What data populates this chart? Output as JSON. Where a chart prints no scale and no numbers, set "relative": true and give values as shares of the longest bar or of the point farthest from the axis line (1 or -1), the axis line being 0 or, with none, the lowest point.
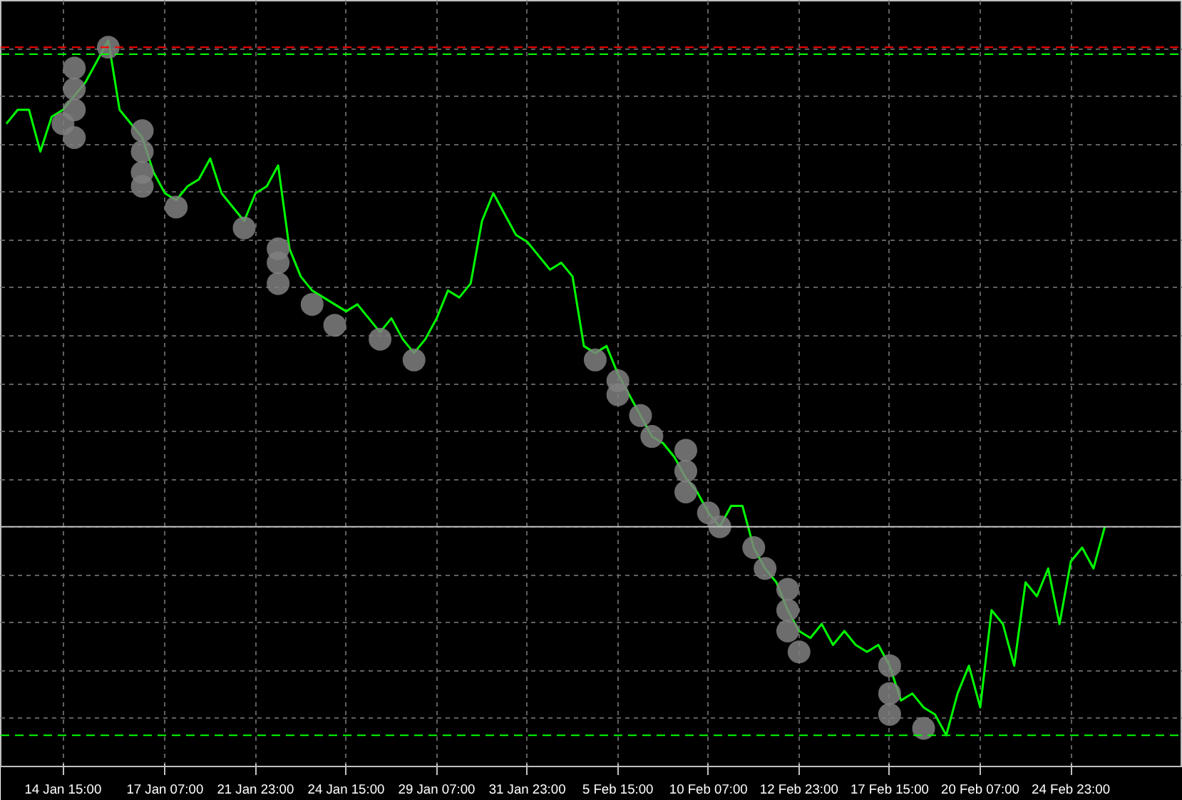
{
  "chart_data": {
    "type": "line",
    "relative": true,
    "grid": true,
    "line_style": "solid",
    "categories": [
      null,
      null,
      null,
      null,
      null,
      "14 Jan 15:00",
      null,
      null,
      null,
      null,
      null,
      null,
      null,
      null,
      "17 Jan 07:00",
      null,
      null,
      null,
      null,
      null,
      null,
      null,
      "21 Jan 23:00",
      null,
      null,
      null,
      null,
      null,
      null,
      null,
      "24 Jan 15:00",
      null,
      null,
      null,
      null,
      null,
      null,
      null,
      "29 Jan 07:00",
      null,
      null,
      null,
      null,
      null,
      null,
      null,
      "31 Jan 23:00",
      null,
      null,
      null,
      null,
      null,
      null,
      null,
      "5 Feb 15:00",
      null,
      null,
      null,
      null,
      null,
      null,
      null,
      "10 Feb 07:00",
      null,
      null,
      null,
      null,
      null,
      null,
      null,
      "12 Feb 23:00",
      null,
      null,
      null,
      null,
      null,
      null,
      null,
      "17 Feb 15:00",
      null,
      null,
      null,
      null,
      null,
      null,
      null,
      "20 Feb 07:00",
      null,
      null,
      null,
      null,
      null,
      null,
      null,
      "24 Feb 23:00",
      null,
      null,
      null
    ],
    "series": [
      {
        "color": "#00ff00",
        "values": [
          0.88,
          0.9,
          0.9,
          0.84,
          0.89,
          0.9,
          0.92,
          0.94,
          0.97,
          1,
          0.9,
          0.88,
          0.86,
          0.81,
          0.78,
          0.77,
          0.79,
          0.8,
          0.83,
          0.78,
          0.76,
          0.74,
          0.78,
          0.79,
          0.82,
          0.7,
          0.66,
          0.64,
          0.63,
          0.62,
          0.61,
          0.62,
          0.6,
          0.58,
          0.6,
          0.57,
          0.55,
          0.57,
          0.6,
          0.64,
          0.63,
          0.65,
          0.74,
          0.78,
          0.75,
          0.72,
          0.71,
          0.69,
          0.67,
          0.68,
          0.66,
          0.56,
          0.55,
          0.56,
          0.52,
          0.49,
          0.46,
          0.43,
          0.42,
          0.4,
          0.37,
          0.35,
          0.32,
          0.3,
          0.33,
          0.33,
          0.27,
          0.24,
          0.22,
          0.18,
          0.15,
          0.14,
          0.16,
          0.13,
          0.15,
          0.13,
          0.12,
          0.13,
          0.1,
          0.05,
          0.06,
          0.04,
          0.03,
          0,
          0.06,
          0.1,
          0.04,
          0.18,
          0.16,
          0.1,
          0.22,
          0.2,
          0.24,
          0.16,
          0.25,
          0.27,
          0.24,
          0.3
        ]
      },
      {
        "type": "scatter",
        "color": "#808080",
        "marker": "circle",
        "values": [
          null,
          null,
          null,
          null,
          null,
          0.88,
          0.96,
          null,
          null,
          0.99,
          null,
          null,
          0.87,
          null,
          null,
          0.76,
          null,
          null,
          null,
          null,
          null,
          0.73,
          null,
          null,
          0.7,
          null,
          null,
          0.62,
          null,
          0.59,
          null,
          null,
          null,
          0.57,
          null,
          null,
          0.54,
          null,
          null,
          null,
          null,
          null,
          null,
          null,
          null,
          null,
          null,
          null,
          null,
          null,
          null,
          null,
          0.54,
          null,
          0.51,
          null,
          0.46,
          0.43,
          null,
          null,
          0.41,
          null,
          0.32,
          0.3,
          null,
          null,
          0.27,
          0.24,
          null,
          0.21,
          0.12,
          null,
          null,
          null,
          null,
          null,
          null,
          null,
          0.1,
          null,
          null,
          0.01,
          null,
          null,
          null,
          null,
          null,
          null,
          null,
          null,
          null,
          null,
          null,
          null,
          null,
          null,
          null,
          null
        ]
      },
      {
        "type": "scatter",
        "color": "#808080",
        "marker": "circle",
        "values": [
          null,
          null,
          null,
          null,
          null,
          null,
          0.93,
          null,
          null,
          null,
          null,
          null,
          0.84,
          null,
          null,
          null,
          null,
          null,
          null,
          null,
          null,
          null,
          null,
          null,
          0.68,
          null,
          null,
          null,
          null,
          null,
          null,
          null,
          null,
          null,
          null,
          null,
          null,
          null,
          null,
          null,
          null,
          null,
          null,
          null,
          null,
          null,
          null,
          null,
          null,
          null,
          null,
          null,
          null,
          null,
          0.49,
          null,
          null,
          null,
          null,
          null,
          0.38,
          null,
          null,
          null,
          null,
          null,
          null,
          null,
          null,
          0.18,
          null,
          null,
          null,
          null,
          null,
          null,
          null,
          null,
          0.06,
          null,
          null,
          null,
          null,
          null,
          null,
          null,
          null,
          null,
          null,
          null,
          null,
          null,
          null,
          null,
          null,
          null,
          null,
          null
        ]
      },
      {
        "type": "scatter",
        "color": "#808080",
        "marker": "circle",
        "values": [
          null,
          null,
          null,
          null,
          null,
          null,
          0.9,
          null,
          null,
          null,
          null,
          null,
          0.81,
          null,
          null,
          null,
          null,
          null,
          null,
          null,
          null,
          null,
          null,
          null,
          0.65,
          null,
          null,
          null,
          null,
          null,
          null,
          null,
          null,
          null,
          null,
          null,
          null,
          null,
          null,
          null,
          null,
          null,
          null,
          null,
          null,
          null,
          null,
          null,
          null,
          null,
          null,
          null,
          null,
          null,
          null,
          null,
          null,
          null,
          null,
          null,
          0.35,
          null,
          null,
          null,
          null,
          null,
          null,
          null,
          null,
          0.15,
          null,
          null,
          null,
          null,
          null,
          null,
          null,
          null,
          0.03,
          null,
          null,
          null,
          null,
          null,
          null,
          null,
          null,
          null,
          null,
          null,
          null,
          null,
          null,
          null,
          null,
          null,
          null,
          null
        ]
      },
      {
        "type": "scatter",
        "color": "#808080",
        "marker": "circle",
        "values": [
          null,
          null,
          null,
          null,
          null,
          null,
          0.86,
          null,
          null,
          null,
          null,
          null,
          0.79,
          null,
          null,
          null,
          null,
          null,
          null,
          null,
          null,
          null,
          null,
          null,
          null,
          null,
          null,
          null,
          null,
          null,
          null,
          null,
          null,
          null,
          null,
          null,
          null,
          null,
          null,
          null,
          null,
          null,
          null,
          null,
          null,
          null,
          null,
          null,
          null,
          null,
          null,
          null,
          null,
          null,
          null,
          null,
          null,
          null,
          null,
          null,
          null,
          null,
          null,
          null,
          null,
          null,
          null,
          null,
          null,
          null,
          null,
          null,
          null,
          null,
          null,
          null,
          null,
          null,
          null,
          null,
          null,
          null,
          null,
          null,
          null,
          null,
          null,
          null,
          null,
          null,
          null,
          null,
          null,
          null,
          null,
          null,
          null,
          null
        ]
      }
    ],
    "ref_lines": [
      {
        "axis": "y",
        "value": 0.99,
        "color": "#ff0000",
        "line_style": "dashed"
      },
      {
        "axis": "y",
        "value": 0.98,
        "color": "#00ff00",
        "line_style": "dashed"
      },
      {
        "axis": "y",
        "value": 0.3,
        "color": "#c0c0c0",
        "line_style": "solid"
      },
      {
        "axis": "y",
        "value": 0.0,
        "color": "#00ff00",
        "line_style": "dashed"
      }
    ]
  }
}
